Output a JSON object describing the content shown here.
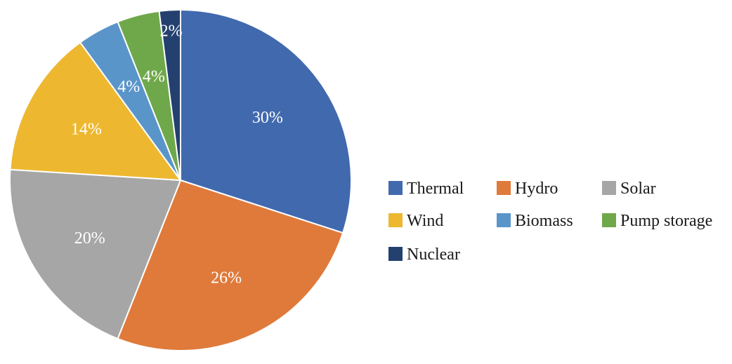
{
  "chart_data": {
    "type": "pie",
    "start_angle_deg": 0,
    "direction": "clockwise",
    "legend_position": "right",
    "slices": [
      {
        "name": "Thermal",
        "value": 30,
        "label": "30%",
        "color": "#4169AE"
      },
      {
        "name": "Hydro",
        "value": 26,
        "label": "26%",
        "color": "#DF7A3B"
      },
      {
        "name": "Solar",
        "value": 20,
        "label": "20%",
        "color": "#A6A6A6"
      },
      {
        "name": "Wind",
        "value": 14,
        "label": "14%",
        "color": "#EDB830"
      },
      {
        "name": "Biomass",
        "value": 4,
        "label": "4%",
        "color": "#5A95CA"
      },
      {
        "name": "Pump storage",
        "value": 4,
        "label": "4%",
        "color": "#6FA84A"
      },
      {
        "name": "Nuclear",
        "value": 2,
        "label": "2%",
        "color": "#23406F"
      }
    ]
  }
}
